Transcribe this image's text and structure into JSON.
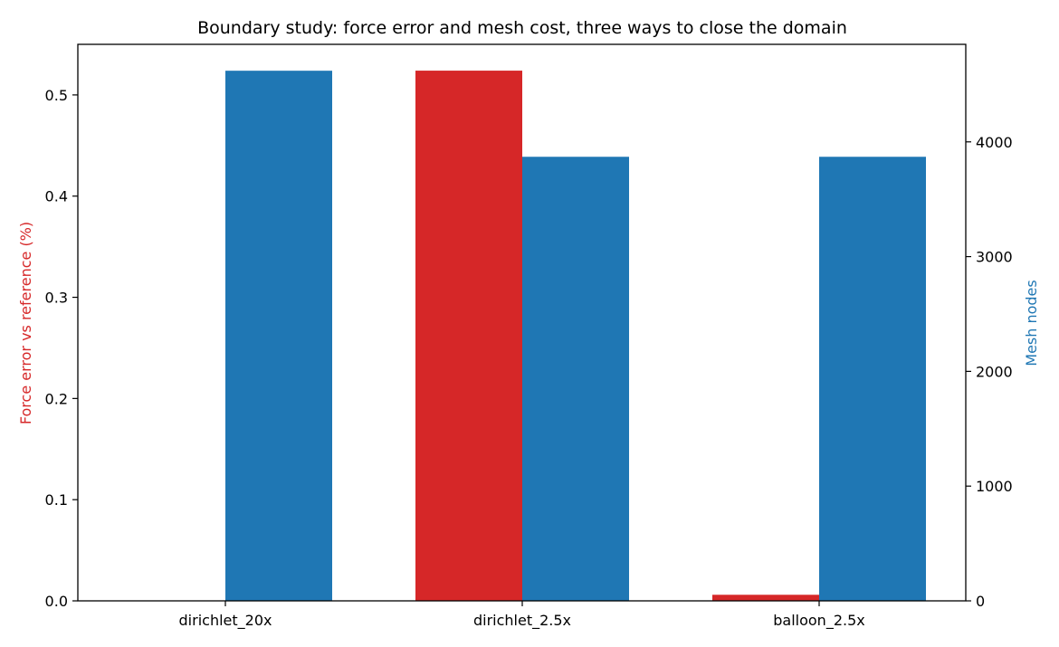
{
  "chart_data": {
    "type": "bar",
    "title": "Boundary study: force error and mesh cost, three ways to close the domain",
    "categories": [
      "dirichlet_20x",
      "dirichlet_2.5x",
      "balloon_2.5x"
    ],
    "y_left": {
      "label": "Force error vs reference (%)",
      "color": "#d62728",
      "ylim": [
        0,
        0.55
      ],
      "ticks": [
        0.0,
        0.1,
        0.2,
        0.3,
        0.4,
        0.5
      ],
      "tick_labels": [
        "0.0",
        "0.1",
        "0.2",
        "0.3",
        "0.4",
        "0.5"
      ]
    },
    "y_right": {
      "label": "Mesh nodes",
      "color": "#1f77b4",
      "ylim": [
        0,
        4850
      ],
      "ticks": [
        0,
        1000,
        2000,
        3000,
        4000
      ],
      "tick_labels": [
        "0",
        "1000",
        "2000",
        "3000",
        "4000"
      ]
    },
    "series": [
      {
        "axis": "left",
        "color": "#d62728",
        "values": [
          0.0,
          0.524,
          0.006
        ]
      },
      {
        "axis": "right",
        "color": "#1f77b4",
        "values": [
          4620,
          3870,
          3870
        ]
      }
    ],
    "grid": false,
    "legend": "none"
  }
}
